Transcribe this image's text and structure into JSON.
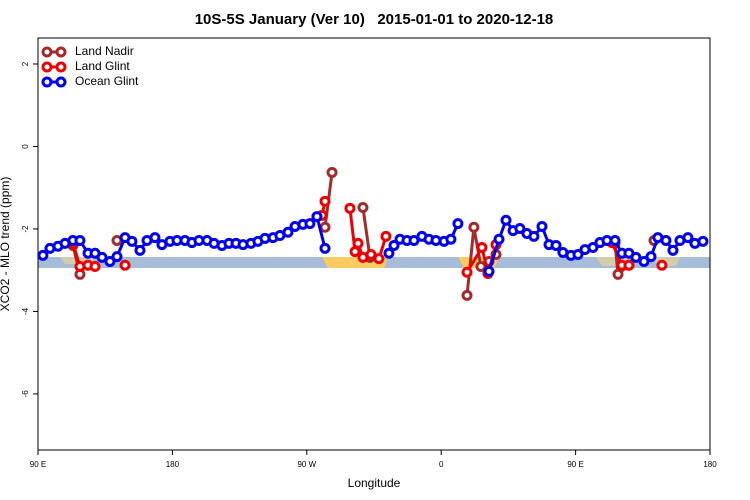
{
  "chart_data": {
    "type": "line",
    "title": "10S-5S January (Ver 10)   2015-01-01 to 2020-12-18",
    "xlabel": "Longitude",
    "ylabel": "XCO2 - MLO trend (ppm)",
    "xlim": [
      90,
      540
    ],
    "xticks": [
      {
        "value": 90,
        "label": "90 E"
      },
      {
        "value": 180,
        "label": "180"
      },
      {
        "value": 270,
        "label": "90 W"
      },
      {
        "value": 360,
        "label": "0"
      },
      {
        "value": 450,
        "label": "90 E"
      },
      {
        "value": 540,
        "label": "180"
      }
    ],
    "ylim": [
      -7.36,
      2.63
    ],
    "yticks": [
      2,
      0,
      -2,
      -4,
      -6
    ],
    "legend": "top-left",
    "series": [
      {
        "name": "Land Nadir",
        "color": "#a52a2a",
        "x": [
          113.4,
          118.1,
          null,
          142.9,
          null,
          282.2,
          286.9,
          null,
          307.6,
          312.3,
          null,
          377.3,
          381.9,
          386.6,
          392.0,
          396.7,
          null,
          476.4,
          478.4,
          485.7,
          null,
          502.5
        ],
        "values": [
          -2.4,
          -3.1,
          null,
          -2.28,
          null,
          -1.96,
          -0.63,
          null,
          -1.48,
          -2.69,
          null,
          -3.61,
          -1.96,
          -2.91,
          -2.79,
          -2.62,
          null,
          -2.35,
          -3.1,
          -2.88,
          null,
          -2.28
        ]
      },
      {
        "name": "Land Glint",
        "color": "#ee0000",
        "x": [
          113.4,
          118.1,
          123.5,
          128.2,
          null,
          148.3,
          null,
          280.2,
          282.2,
          null,
          298.9,
          302.3,
          304.3,
          307.6,
          313.0,
          318.3,
          323.0,
          null,
          377.3,
          387.3,
          391.3,
          396.7,
          null,
          474.4,
          481.0,
          485.7,
          null,
          507.8
        ],
        "values": [
          -2.35,
          -2.91,
          -2.88,
          -2.91,
          null,
          -2.88,
          null,
          -1.67,
          -1.33,
          null,
          -1.5,
          -2.55,
          -2.35,
          -2.69,
          -2.62,
          -2.72,
          -2.18,
          null,
          -3.05,
          -2.45,
          -3.08,
          -2.38,
          null,
          -2.33,
          -2.88,
          -2.88,
          null,
          -2.88
        ]
      },
      {
        "name": "Ocean Glint",
        "color": "#0000ee",
        "x": [
          93.3,
          98.0,
          103.4,
          108.1,
          113.4,
          118.1,
          123.5,
          128.2,
          132.9,
          138.2,
          142.9,
          148.3,
          152.9,
          158.3,
          163.0,
          168.3,
          173.0,
          178.4,
          183.1,
          188.4,
          193.1,
          197.8,
          203.2,
          207.9,
          213.2,
          217.9,
          222.6,
          227.3,
          232.6,
          237.3,
          242.0,
          247.4,
          252.0,
          257.4,
          262.1,
          267.4,
          272.1,
          276.8,
          282.2,
          null,
          325.0,
          328.4,
          332.4,
          337.1,
          341.8,
          347.1,
          351.8,
          356.5,
          361.9,
          366.5,
          371.2,
          null,
          392.0,
          398.7,
          403.4,
          408.1,
          412.7,
          417.4,
          422.1,
          427.5,
          432.2,
          436.9,
          441.5,
          446.9,
          451.6,
          456.3,
          461.6,
          466.3,
          471.0,
          476.4,
          481.0,
          485.7,
          490.4,
          495.8,
          500.5,
          505.1,
          510.5,
          515.2,
          519.9,
          525.2,
          529.9,
          535.3
        ],
        "values": [
          -2.64,
          -2.47,
          -2.42,
          -2.35,
          -2.28,
          -2.28,
          -2.59,
          -2.59,
          -2.69,
          -2.79,
          -2.67,
          -2.21,
          -2.3,
          -2.52,
          -2.28,
          -2.21,
          -2.38,
          -2.3,
          -2.28,
          -2.28,
          -2.33,
          -2.28,
          -2.28,
          -2.35,
          -2.4,
          -2.35,
          -2.35,
          -2.38,
          -2.35,
          -2.3,
          -2.23,
          -2.21,
          -2.16,
          -2.08,
          -1.94,
          -1.89,
          -1.87,
          -1.7,
          -2.47,
          null,
          -2.59,
          -2.4,
          -2.25,
          -2.28,
          -2.28,
          -2.18,
          -2.25,
          -2.28,
          -2.3,
          -2.25,
          -1.87,
          null,
          -3.03,
          -2.25,
          -1.79,
          -2.04,
          -1.99,
          -2.11,
          -2.18,
          -1.94,
          -2.38,
          -2.4,
          -2.57,
          -2.64,
          -2.62,
          -2.5,
          -2.45,
          -2.33,
          -2.28,
          -2.28,
          -2.59,
          -2.59,
          -2.69,
          -2.79,
          -2.67,
          -2.21,
          -2.28,
          -2.52,
          -2.28,
          -2.21,
          -2.35,
          -2.3
        ]
      }
    ]
  }
}
